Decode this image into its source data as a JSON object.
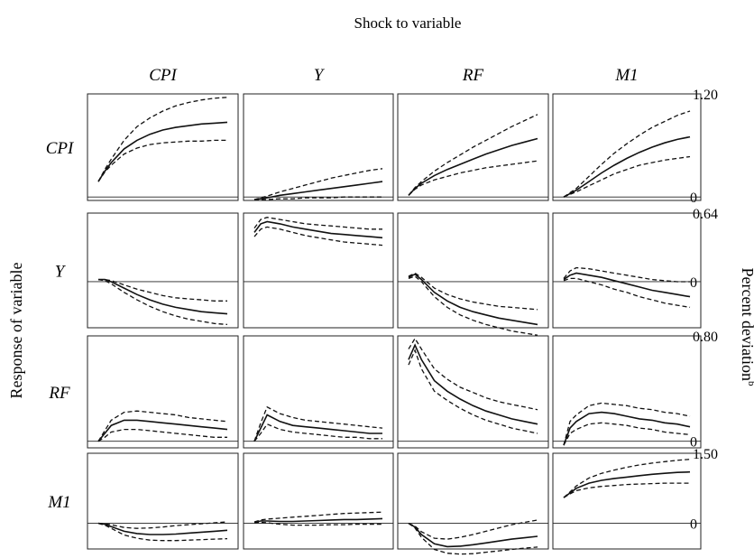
{
  "chart_data": {
    "type": "line",
    "title": "Shock to variable",
    "ylabel_left": "Response of variable",
    "ylabel_right": "Percent deviation",
    "ylabel_right_superscript": "b",
    "columns": [
      "CPI",
      "Y",
      "RF",
      "M1"
    ],
    "rows": [
      {
        "name": "CPI",
        "ylim": [
          -0.04,
          1.2
        ],
        "tick_top": "1.20",
        "tick_zero": "0"
      },
      {
        "name": "Y",
        "ylim": [
          -0.43,
          0.64
        ],
        "tick_top": "0.64",
        "tick_zero": "0"
      },
      {
        "name": "RF",
        "ylim": [
          -0.05,
          0.8
        ],
        "tick_top": "0.80",
        "tick_zero": "0"
      },
      {
        "name": "M1",
        "ylim": [
          -0.55,
          1.5
        ],
        "tick_top": "1.50",
        "tick_zero": "0"
      }
    ],
    "x": [
      0,
      1,
      2,
      4,
      6,
      8,
      10,
      12,
      14,
      16,
      18,
      20
    ],
    "panels": [
      {
        "row": "CPI",
        "col": "CPI",
        "estimate": [
          0.18,
          0.3,
          0.4,
          0.56,
          0.66,
          0.73,
          0.78,
          0.81,
          0.83,
          0.85,
          0.86,
          0.87
        ],
        "upper": [
          0.18,
          0.32,
          0.44,
          0.66,
          0.82,
          0.92,
          1.0,
          1.06,
          1.1,
          1.13,
          1.15,
          1.16
        ],
        "lower": [
          0.18,
          0.29,
          0.37,
          0.5,
          0.57,
          0.61,
          0.63,
          0.64,
          0.65,
          0.65,
          0.66,
          0.66
        ]
      },
      {
        "row": "CPI",
        "col": "Y",
        "estimate": [
          -0.03,
          -0.02,
          -0.01,
          0.02,
          0.04,
          0.06,
          0.08,
          0.1,
          0.12,
          0.14,
          0.16,
          0.18
        ],
        "upper": [
          -0.03,
          -0.01,
          0.01,
          0.06,
          0.1,
          0.14,
          0.18,
          0.22,
          0.25,
          0.28,
          0.31,
          0.33
        ],
        "lower": [
          -0.03,
          -0.03,
          -0.03,
          -0.02,
          -0.02,
          -0.01,
          -0.01,
          -0.01,
          0.0,
          0.0,
          0.0,
          0.0
        ]
      },
      {
        "row": "CPI",
        "col": "RF",
        "estimate": [
          0.02,
          0.1,
          0.16,
          0.25,
          0.32,
          0.38,
          0.44,
          0.5,
          0.55,
          0.6,
          0.64,
          0.68
        ],
        "upper": [
          0.02,
          0.11,
          0.18,
          0.3,
          0.4,
          0.49,
          0.58,
          0.66,
          0.74,
          0.82,
          0.89,
          0.96
        ],
        "lower": [
          0.02,
          0.09,
          0.14,
          0.2,
          0.24,
          0.28,
          0.31,
          0.34,
          0.36,
          0.38,
          0.4,
          0.42
        ]
      },
      {
        "row": "CPI",
        "col": "M1",
        "estimate": [
          0.0,
          0.04,
          0.08,
          0.18,
          0.28,
          0.37,
          0.45,
          0.52,
          0.58,
          0.63,
          0.67,
          0.7
        ],
        "upper": [
          0.0,
          0.05,
          0.1,
          0.24,
          0.38,
          0.51,
          0.62,
          0.72,
          0.81,
          0.88,
          0.95,
          1.0
        ],
        "lower": [
          0.0,
          0.03,
          0.06,
          0.13,
          0.2,
          0.27,
          0.32,
          0.37,
          0.4,
          0.43,
          0.45,
          0.47
        ]
      },
      {
        "row": "Y",
        "col": "CPI",
        "estimate": [
          0.02,
          0.02,
          0.0,
          -0.06,
          -0.12,
          -0.17,
          -0.21,
          -0.24,
          -0.26,
          -0.28,
          -0.29,
          -0.3
        ],
        "upper": [
          0.02,
          0.02,
          0.01,
          -0.03,
          -0.07,
          -0.1,
          -0.13,
          -0.15,
          -0.16,
          -0.17,
          -0.18,
          -0.18
        ],
        "lower": [
          0.02,
          0.01,
          -0.02,
          -0.1,
          -0.17,
          -0.23,
          -0.28,
          -0.32,
          -0.35,
          -0.37,
          -0.39,
          -0.4
        ]
      },
      {
        "row": "Y",
        "col": "Y",
        "estimate": [
          0.46,
          0.54,
          0.56,
          0.54,
          0.51,
          0.49,
          0.47,
          0.45,
          0.44,
          0.43,
          0.42,
          0.41
        ],
        "upper": [
          0.5,
          0.58,
          0.6,
          0.58,
          0.56,
          0.54,
          0.53,
          0.52,
          0.51,
          0.5,
          0.49,
          0.49
        ],
        "lower": [
          0.42,
          0.49,
          0.51,
          0.49,
          0.46,
          0.43,
          0.41,
          0.39,
          0.37,
          0.36,
          0.35,
          0.34
        ]
      },
      {
        "row": "Y",
        "col": "RF",
        "estimate": [
          0.04,
          0.07,
          0.02,
          -0.1,
          -0.18,
          -0.24,
          -0.28,
          -0.31,
          -0.34,
          -0.36,
          -0.38,
          -0.4
        ],
        "upper": [
          0.05,
          0.08,
          0.04,
          -0.06,
          -0.12,
          -0.16,
          -0.19,
          -0.21,
          -0.23,
          -0.24,
          -0.25,
          -0.26
        ],
        "lower": [
          0.03,
          0.05,
          0.0,
          -0.14,
          -0.24,
          -0.31,
          -0.36,
          -0.4,
          -0.43,
          -0.46,
          -0.48,
          -0.5
        ]
      },
      {
        "row": "Y",
        "col": "M1",
        "estimate": [
          0.02,
          0.06,
          0.08,
          0.06,
          0.04,
          0.01,
          -0.02,
          -0.05,
          -0.08,
          -0.1,
          -0.12,
          -0.14
        ],
        "upper": [
          0.03,
          0.1,
          0.13,
          0.12,
          0.1,
          0.08,
          0.06,
          0.04,
          0.02,
          0.01,
          0.0,
          0.0
        ],
        "lower": [
          0.01,
          0.03,
          0.03,
          0.0,
          -0.03,
          -0.07,
          -0.1,
          -0.14,
          -0.17,
          -0.2,
          -0.22,
          -0.24
        ]
      },
      {
        "row": "RF",
        "col": "CPI",
        "estimate": [
          0.0,
          0.06,
          0.12,
          0.16,
          0.16,
          0.15,
          0.14,
          0.13,
          0.12,
          0.11,
          0.1,
          0.09
        ],
        "upper": [
          0.0,
          0.08,
          0.16,
          0.22,
          0.23,
          0.22,
          0.21,
          0.2,
          0.18,
          0.17,
          0.16,
          0.15
        ],
        "lower": [
          0.0,
          0.03,
          0.07,
          0.09,
          0.09,
          0.08,
          0.07,
          0.06,
          0.05,
          0.04,
          0.03,
          0.03
        ]
      },
      {
        "row": "RF",
        "col": "Y",
        "estimate": [
          0.0,
          0.1,
          0.2,
          0.15,
          0.12,
          0.11,
          0.1,
          0.09,
          0.08,
          0.07,
          0.06,
          0.06
        ],
        "upper": [
          0.0,
          0.14,
          0.26,
          0.21,
          0.18,
          0.16,
          0.15,
          0.14,
          0.13,
          0.12,
          0.11,
          0.1
        ],
        "lower": [
          0.0,
          0.06,
          0.13,
          0.09,
          0.07,
          0.06,
          0.05,
          0.04,
          0.03,
          0.03,
          0.02,
          0.02
        ]
      },
      {
        "row": "RF",
        "col": "RF",
        "estimate": [
          0.62,
          0.73,
          0.62,
          0.46,
          0.38,
          0.32,
          0.27,
          0.23,
          0.2,
          0.17,
          0.15,
          0.13
        ],
        "upper": [
          0.7,
          0.78,
          0.7,
          0.55,
          0.47,
          0.41,
          0.37,
          0.33,
          0.3,
          0.28,
          0.26,
          0.24
        ],
        "lower": [
          0.58,
          0.69,
          0.55,
          0.38,
          0.31,
          0.25,
          0.2,
          0.16,
          0.13,
          0.1,
          0.08,
          0.06
        ]
      },
      {
        "row": "RF",
        "col": "M1",
        "estimate": [
          -0.03,
          0.1,
          0.15,
          0.21,
          0.22,
          0.21,
          0.19,
          0.17,
          0.16,
          0.14,
          0.13,
          0.11
        ],
        "upper": [
          -0.03,
          0.15,
          0.2,
          0.27,
          0.29,
          0.28,
          0.27,
          0.25,
          0.24,
          0.22,
          0.21,
          0.19
        ],
        "lower": [
          -0.03,
          0.06,
          0.09,
          0.13,
          0.14,
          0.13,
          0.12,
          0.1,
          0.09,
          0.07,
          0.06,
          0.05
        ]
      },
      {
        "row": "M1",
        "col": "CPI",
        "estimate": [
          0.0,
          -0.02,
          -0.07,
          -0.17,
          -0.22,
          -0.24,
          -0.24,
          -0.23,
          -0.21,
          -0.19,
          -0.17,
          -0.15
        ],
        "upper": [
          0.0,
          -0.01,
          -0.03,
          -0.09,
          -0.11,
          -0.1,
          -0.08,
          -0.05,
          -0.03,
          -0.01,
          0.01,
          0.03
        ],
        "lower": [
          0.0,
          -0.04,
          -0.11,
          -0.25,
          -0.32,
          -0.36,
          -0.37,
          -0.37,
          -0.36,
          -0.35,
          -0.34,
          -0.33
        ]
      },
      {
        "row": "M1",
        "col": "Y",
        "estimate": [
          0.02,
          0.05,
          0.05,
          0.04,
          0.04,
          0.05,
          0.06,
          0.07,
          0.08,
          0.08,
          0.09,
          0.1
        ],
        "upper": [
          0.03,
          0.07,
          0.09,
          0.11,
          0.13,
          0.15,
          0.17,
          0.19,
          0.21,
          0.22,
          0.23,
          0.24
        ],
        "lower": [
          0.01,
          0.02,
          0.01,
          -0.02,
          -0.04,
          -0.04,
          -0.04,
          -0.03,
          -0.03,
          -0.02,
          -0.02,
          -0.02
        ]
      },
      {
        "row": "M1",
        "col": "RF",
        "estimate": [
          0.0,
          -0.08,
          -0.24,
          -0.44,
          -0.5,
          -0.49,
          -0.46,
          -0.42,
          -0.38,
          -0.34,
          -0.31,
          -0.28
        ],
        "upper": [
          0.0,
          -0.06,
          -0.18,
          -0.32,
          -0.34,
          -0.3,
          -0.24,
          -0.17,
          -0.1,
          -0.03,
          0.02,
          0.07
        ],
        "lower": [
          0.0,
          -0.1,
          -0.3,
          -0.56,
          -0.64,
          -0.66,
          -0.65,
          -0.62,
          -0.59,
          -0.56,
          -0.53,
          -0.51
        ]
      },
      {
        "row": "M1",
        "col": "M1",
        "estimate": [
          0.55,
          0.65,
          0.75,
          0.86,
          0.92,
          0.96,
          0.99,
          1.02,
          1.05,
          1.07,
          1.09,
          1.1
        ],
        "upper": [
          0.55,
          0.67,
          0.8,
          0.97,
          1.07,
          1.14,
          1.2,
          1.25,
          1.29,
          1.32,
          1.35,
          1.37
        ],
        "lower": [
          0.55,
          0.63,
          0.7,
          0.76,
          0.79,
          0.81,
          0.83,
          0.84,
          0.85,
          0.86,
          0.86,
          0.86
        ]
      }
    ]
  }
}
